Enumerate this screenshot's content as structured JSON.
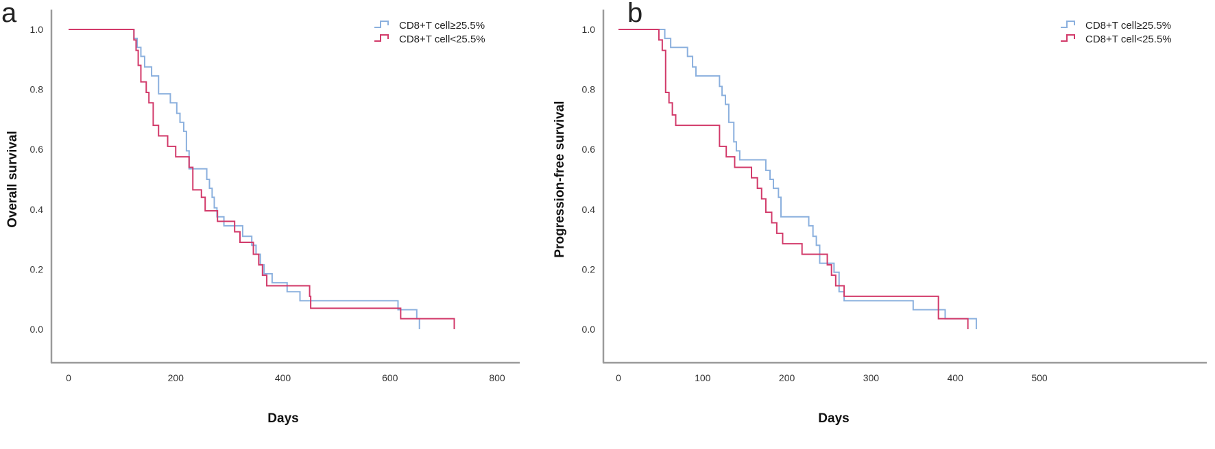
{
  "colors": {
    "high_group": "#8bb0de",
    "low_group": "#d23a6a",
    "axis": "#9a9a9a"
  },
  "chart_data": [
    {
      "type": "line",
      "subtype": "kaplan-meier step",
      "panel_label": "a",
      "title": "",
      "xlabel": "Days",
      "ylabel": "Overall survival",
      "xlim": [
        0,
        800
      ],
      "ylim": [
        0,
        1.0
      ],
      "xticks": [
        "0",
        "200",
        "400",
        "600",
        "800"
      ],
      "xtick_values": [
        0,
        200,
        400,
        600,
        800
      ],
      "yticks": [
        "0.0",
        "0.2",
        "0.4",
        "0.6",
        "0.8",
        "1.0"
      ],
      "ytick_values": [
        0,
        0.2,
        0.4,
        0.6,
        0.8,
        1.0
      ],
      "grid": false,
      "legend_position": "top-right",
      "series": [
        {
          "name": "CD8+T cell≥25.5%",
          "color_key": "high_group",
          "x": [
            0,
            122,
            128,
            135,
            142,
            155,
            168,
            190,
            202,
            208,
            215,
            220,
            225,
            232,
            258,
            263,
            268,
            272,
            277,
            290,
            305,
            325,
            342,
            350,
            358,
            365,
            380,
            408,
            432,
            615,
            622,
            650,
            655
          ],
          "y": [
            1.0,
            0.97,
            0.94,
            0.91,
            0.875,
            0.845,
            0.785,
            0.755,
            0.72,
            0.69,
            0.66,
            0.595,
            0.535,
            0.535,
            0.5,
            0.47,
            0.44,
            0.405,
            0.375,
            0.345,
            0.345,
            0.31,
            0.28,
            0.25,
            0.215,
            0.185,
            0.155,
            0.125,
            0.095,
            0.065,
            0.065,
            0.035,
            0.0
          ]
        },
        {
          "name": "CD8+T cell<25.5%",
          "color_key": "low_group",
          "x": [
            0,
            122,
            126,
            130,
            135,
            145,
            150,
            158,
            168,
            185,
            200,
            225,
            232,
            248,
            255,
            278,
            290,
            310,
            320,
            345,
            355,
            362,
            370,
            385,
            450,
            452,
            620,
            720
          ],
          "y": [
            1.0,
            0.965,
            0.93,
            0.88,
            0.825,
            0.79,
            0.755,
            0.68,
            0.645,
            0.61,
            0.575,
            0.54,
            0.465,
            0.44,
            0.395,
            0.36,
            0.36,
            0.325,
            0.29,
            0.25,
            0.215,
            0.18,
            0.145,
            0.145,
            0.11,
            0.07,
            0.035,
            0.0
          ]
        }
      ]
    },
    {
      "type": "line",
      "subtype": "kaplan-meier step",
      "panel_label": "b",
      "title": "",
      "xlabel": "Days",
      "ylabel": "Progression-free survival",
      "xlim": [
        0,
        500
      ],
      "ylim": [
        0,
        1.0
      ],
      "xticks": [
        "0",
        "100",
        "200",
        "300",
        "400",
        "500"
      ],
      "xtick_values": [
        0,
        100,
        200,
        300,
        400,
        500
      ],
      "yticks": [
        "0.0",
        "0.2",
        "0.4",
        "0.6",
        "0.8",
        "1.0"
      ],
      "ytick_values": [
        0,
        0.2,
        0.4,
        0.6,
        0.8,
        1.0
      ],
      "grid": false,
      "legend_position": "top-right",
      "series": [
        {
          "name": "CD8+T cell≥25.5%",
          "color_key": "high_group",
          "x": [
            0,
            55,
            62,
            82,
            88,
            92,
            120,
            123,
            127,
            131,
            137,
            140,
            144,
            175,
            180,
            184,
            190,
            193,
            226,
            231,
            235,
            239,
            256,
            262,
            268,
            350,
            388,
            425
          ],
          "y": [
            1.0,
            0.97,
            0.94,
            0.91,
            0.875,
            0.845,
            0.81,
            0.78,
            0.75,
            0.69,
            0.625,
            0.595,
            0.565,
            0.53,
            0.5,
            0.47,
            0.44,
            0.375,
            0.345,
            0.31,
            0.28,
            0.22,
            0.19,
            0.125,
            0.095,
            0.065,
            0.035,
            0.0
          ]
        },
        {
          "name": "CD8+T cell<25.5%",
          "color_key": "low_group",
          "x": [
            0,
            48,
            52,
            56,
            60,
            64,
            68,
            120,
            128,
            138,
            158,
            165,
            170,
            175,
            182,
            188,
            195,
            218,
            248,
            253,
            258,
            262,
            268,
            380,
            415
          ],
          "y": [
            1.0,
            0.965,
            0.93,
            0.79,
            0.755,
            0.715,
            0.68,
            0.61,
            0.575,
            0.54,
            0.505,
            0.47,
            0.435,
            0.39,
            0.355,
            0.32,
            0.285,
            0.25,
            0.215,
            0.18,
            0.145,
            0.145,
            0.11,
            0.035,
            0.0
          ]
        }
      ]
    }
  ]
}
